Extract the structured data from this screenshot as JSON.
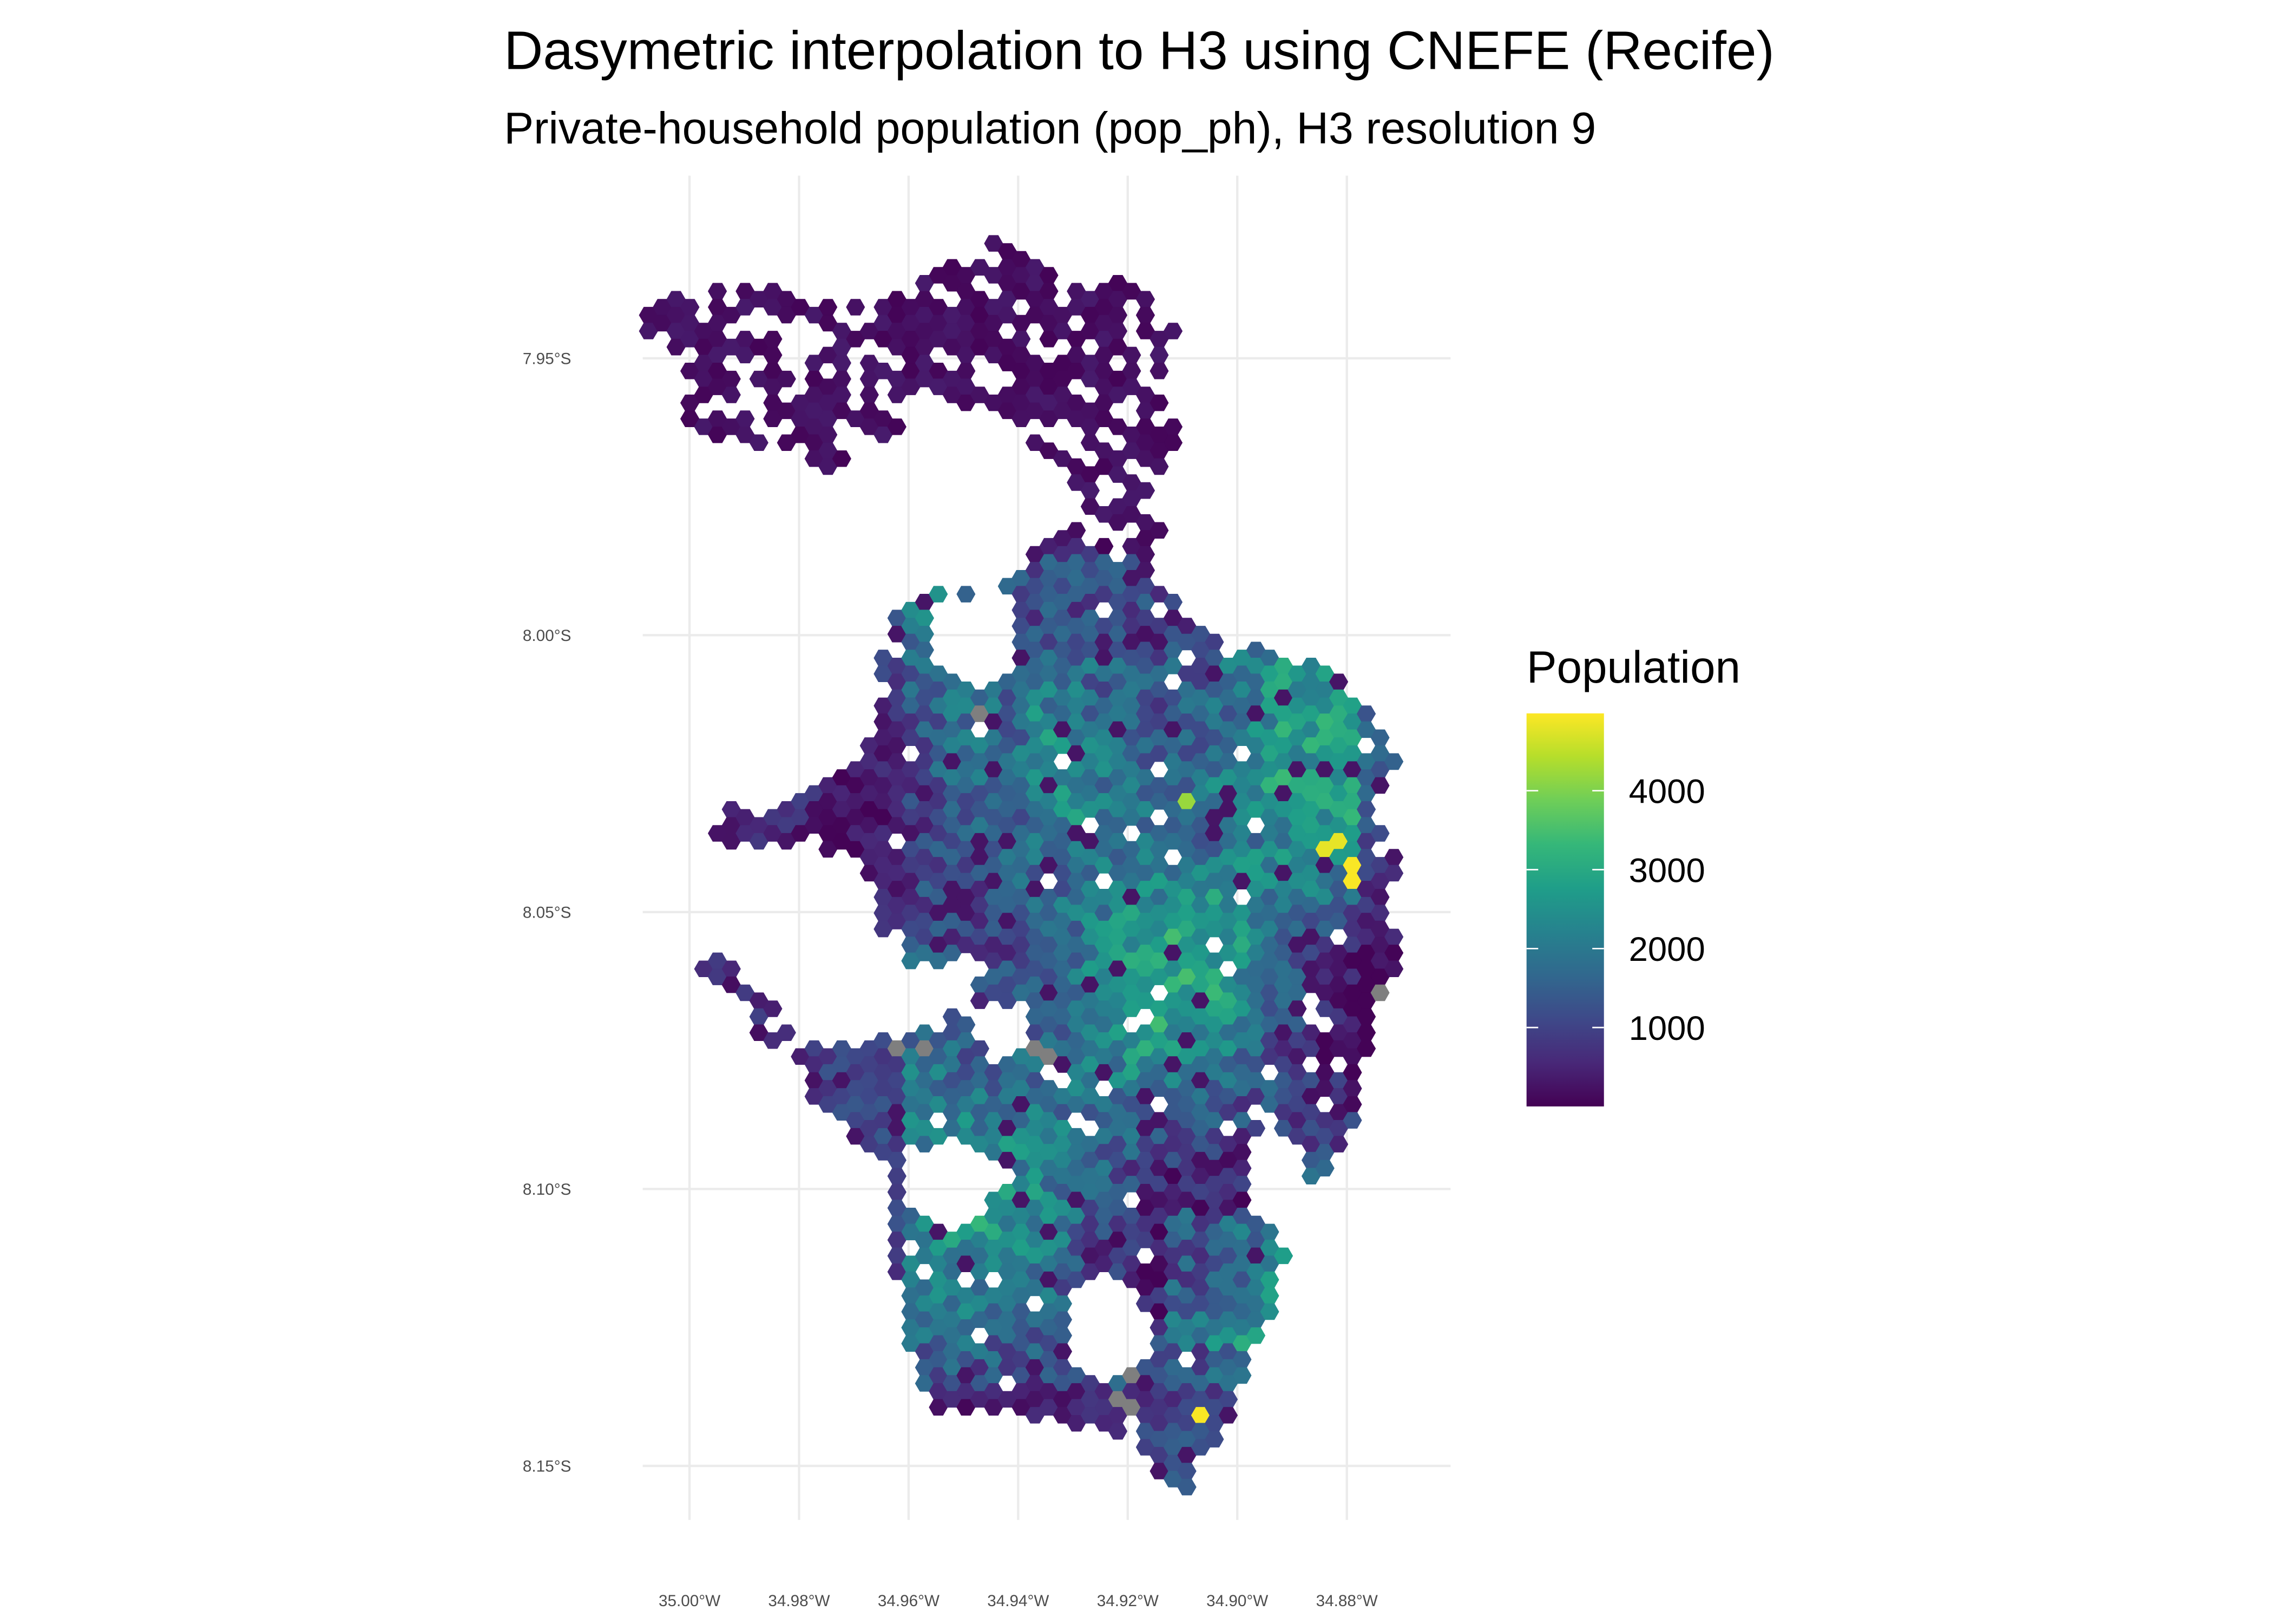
{
  "chart_data": {
    "type": "heatmap",
    "map_type": "hexagon choropleth (H3)",
    "title": "Dasymetric interpolation to H3 using CNEFE (Recife)",
    "subtitle": "Private-household population (pop_ph), H3 resolution 9",
    "x_ticks": [
      {
        "value": -35.0,
        "label": "35.00°W"
      },
      {
        "value": -34.98,
        "label": "34.98°W"
      },
      {
        "value": -34.96,
        "label": "34.96°W"
      },
      {
        "value": -34.94,
        "label": "34.94°W"
      },
      {
        "value": -34.92,
        "label": "34.92°W"
      },
      {
        "value": -34.9,
        "label": "34.90°W"
      },
      {
        "value": -34.88,
        "label": "34.88°W"
      }
    ],
    "y_ticks": [
      {
        "value": -7.95,
        "label": "7.95°S"
      },
      {
        "value": -8.0,
        "label": "8.00°S"
      },
      {
        "value": -8.05,
        "label": "8.05°S"
      },
      {
        "value": -8.1,
        "label": "8.10°S"
      },
      {
        "value": -8.15,
        "label": "8.15°S"
      }
    ],
    "grid": true,
    "legend": {
      "title": "Population",
      "position": "right",
      "palette": "viridis",
      "range": [
        0,
        4980
      ],
      "ticks": [
        {
          "value": 4000,
          "label": "4000"
        },
        {
          "value": 3000,
          "label": "3000"
        },
        {
          "value": 2000,
          "label": "2000"
        },
        {
          "value": 1000,
          "label": "1000"
        }
      ]
    },
    "colors": {
      "viridis": [
        "#440154",
        "#482878",
        "#3e4989",
        "#31688e",
        "#26828e",
        "#1f9e89",
        "#35b779",
        "#6ece58",
        "#b5de2b",
        "#fde725"
      ],
      "na": "#7f7f7f",
      "grid": "#ebebeb"
    },
    "notable_cells": [
      {
        "lon": -34.8824,
        "lat": -8.0379,
        "value": 4800
      },
      {
        "lon": -34.8792,
        "lat": -8.0429,
        "value": 4950
      },
      {
        "lon": -34.9072,
        "lat": -8.14,
        "value": 4950
      },
      {
        "lon": -34.9085,
        "lat": -8.0292,
        "value": 4200
      }
    ],
    "na_cells": [
      {
        "lon": -34.9467,
        "lat": -8.0144
      },
      {
        "lon": -34.9627,
        "lat": -8.0737
      },
      {
        "lon": -34.9568,
        "lat": -8.0737
      },
      {
        "lon": -34.9357,
        "lat": -8.0753
      },
      {
        "lon": -34.9187,
        "lat": -8.1334
      },
      {
        "lon": -34.9213,
        "lat": -8.1382
      },
      {
        "lon": -34.9187,
        "lat": -8.14
      },
      {
        "lon": -34.8728,
        "lat": -8.0635
      }
    ]
  }
}
